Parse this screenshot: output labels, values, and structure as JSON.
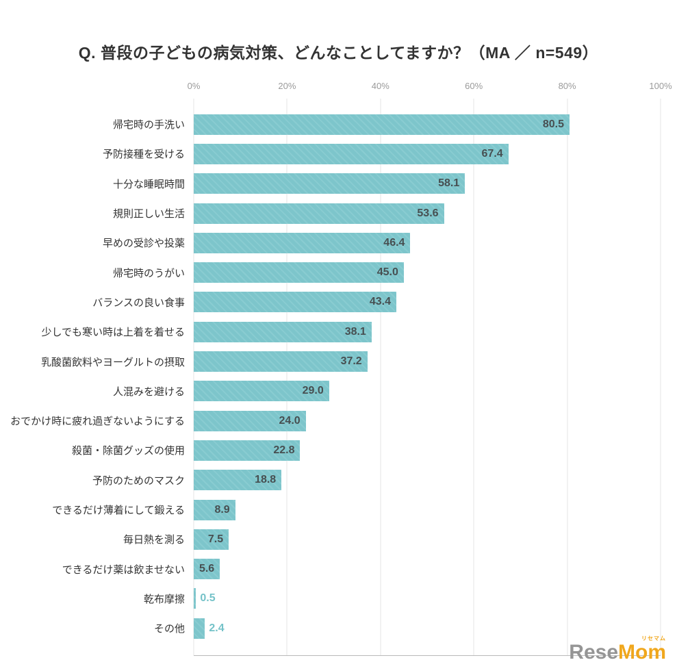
{
  "title": "Q. 普段の子どもの病気対策、どんなことしてますか？（MA ／ n=549）",
  "chart_data": {
    "type": "bar",
    "orientation": "horizontal",
    "title": "Q. 普段の子どもの病気対策、どんなことしてますか？（MA ／ n=549）",
    "categories": [
      "帰宅時の手洗い",
      "予防接種を受ける",
      "十分な睡眠時間",
      "規則正しい生活",
      "早めの受診や投薬",
      "帰宅時のうがい",
      "バランスの良い食事",
      "少しでも寒い時は上着を着せる",
      "乳酸菌飲料やヨーグルトの摂取",
      "人混みを避ける",
      "おでかけ時に疲れ過ぎないようにする",
      "殺菌・除菌グッズの使用",
      "予防のためのマスク",
      "できるだけ薄着にして鍛える",
      "毎日熱を測る",
      "できるだけ薬は飲ませない",
      "乾布摩擦",
      "その他"
    ],
    "values": [
      80.5,
      67.4,
      58.1,
      53.6,
      46.4,
      45.0,
      43.4,
      38.1,
      37.2,
      29.0,
      24.0,
      22.8,
      18.8,
      8.9,
      7.5,
      5.6,
      0.5,
      2.4
    ],
    "x_axis_ticks": [
      "0%",
      "20%",
      "40%",
      "60%",
      "80%",
      "100%"
    ],
    "xlim": [
      0,
      100
    ],
    "grid": true,
    "bar_color": "#7dc5cb",
    "value_label_inside_color": "#474f51",
    "value_label_outside_color": "#74c2c8"
  },
  "logo": {
    "gray_part": "Rese",
    "accent_part": "Mom",
    "ruby": "リセマム"
  }
}
